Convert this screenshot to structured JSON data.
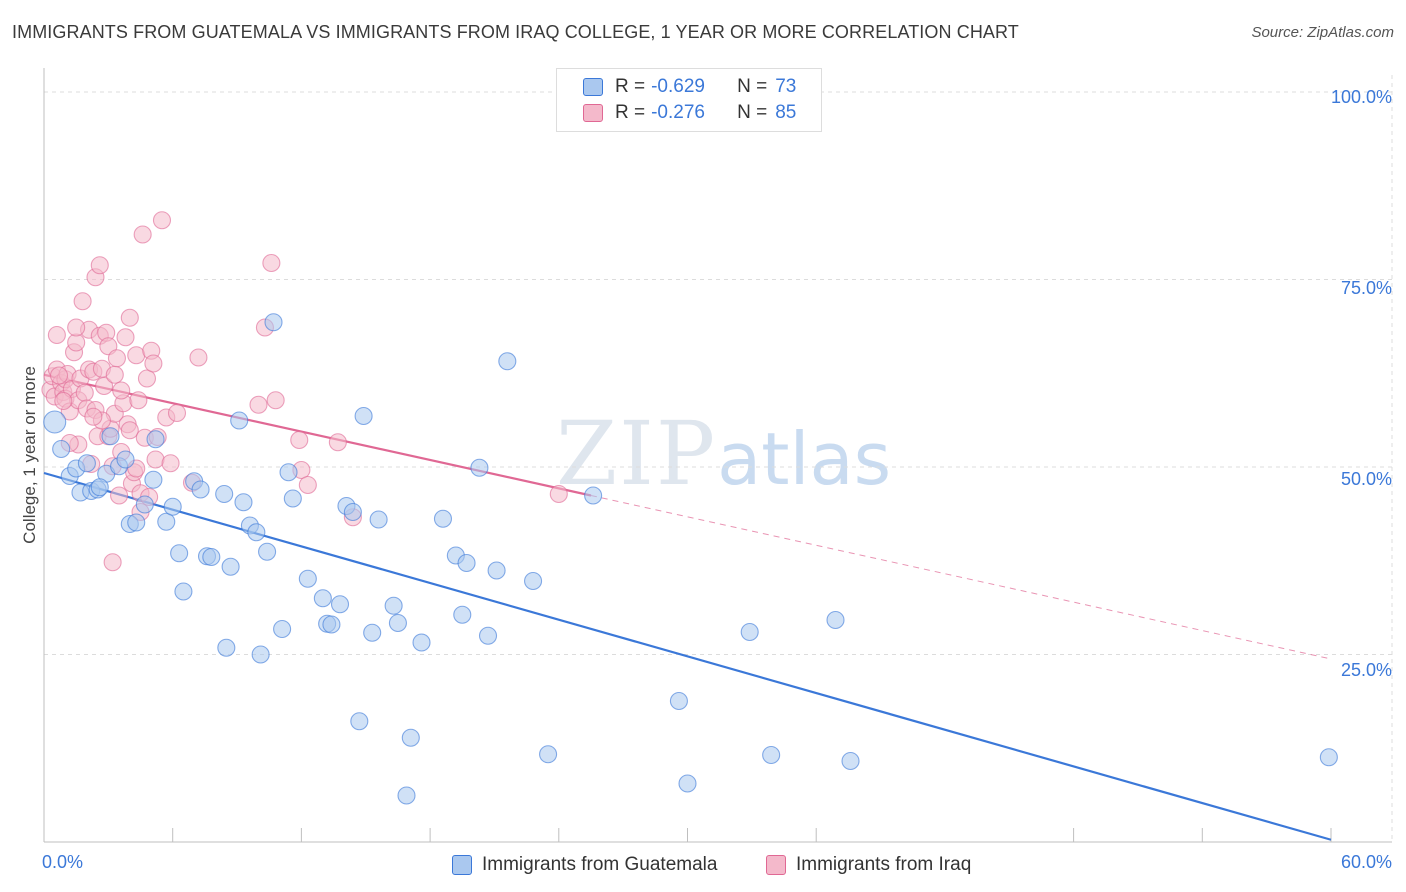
{
  "header": {
    "title": "IMMIGRANTS FROM GUATEMALA VS IMMIGRANTS FROM IRAQ COLLEGE, 1 YEAR OR MORE CORRELATION CHART",
    "source": "Source: ZipAtlas.com"
  },
  "watermark": {
    "zip": "ZIP",
    "atlas": "atlas"
  },
  "legend_top": {
    "rows": [
      {
        "r_label": "R =",
        "r_value": "-0.629",
        "n_label": "N =",
        "n_value": "73",
        "color": "#aac8ef"
      },
      {
        "r_label": "R =",
        "r_value": "-0.276",
        "n_label": "N =",
        "n_value": "85",
        "color": "#f4b9cb"
      }
    ]
  },
  "legend_bottom": {
    "items": [
      {
        "label": "Immigrants from Guatemala",
        "color": "#aac8ef"
      },
      {
        "label": "Immigrants from Iraq",
        "color": "#f4b9cb"
      }
    ]
  },
  "axes": {
    "ylabel": "College, 1 year or more",
    "x_min_label": "0.0%",
    "x_max_label": "60.0%",
    "y_tick_labels": [
      "100.0%",
      "75.0%",
      "50.0%",
      "25.0%"
    ]
  },
  "chart_data": {
    "type": "scatter",
    "title": "IMMIGRANTS FROM GUATEMALA VS IMMIGRANTS FROM IRAQ COLLEGE, 1 YEAR OR MORE CORRELATION CHART",
    "xlabel": "",
    "ylabel": "College, 1 year or more",
    "xlim": [
      0,
      60
    ],
    "ylim": [
      0,
      102
    ],
    "grid": true,
    "legend_position": "bottom",
    "series": [
      {
        "name": "Immigrants from Guatemala",
        "color": "#3b78d8",
        "fill": "#aac8ef",
        "trend": {
          "x": [
            0,
            60
          ],
          "y": [
            49.2,
            0.3
          ]
        },
        "points": [
          [
            0.5,
            56.0
          ],
          [
            0.8,
            52.4
          ],
          [
            1.2,
            48.8
          ],
          [
            1.5,
            49.8
          ],
          [
            1.7,
            46.6
          ],
          [
            2.0,
            50.5
          ],
          [
            2.2,
            46.8
          ],
          [
            2.5,
            47.0
          ],
          [
            2.9,
            49.1
          ],
          [
            3.1,
            54.1
          ],
          [
            3.5,
            50.1
          ],
          [
            3.8,
            51.0
          ],
          [
            4.0,
            42.4
          ],
          [
            4.3,
            42.6
          ],
          [
            4.7,
            45.0
          ],
          [
            5.2,
            53.7
          ],
          [
            5.1,
            48.3
          ],
          [
            5.7,
            42.7
          ],
          [
            6.3,
            38.5
          ],
          [
            6.5,
            33.4
          ],
          [
            7.0,
            48.1
          ],
          [
            7.3,
            47.0
          ],
          [
            7.6,
            38.1
          ],
          [
            7.8,
            38.0
          ],
          [
            8.4,
            46.4
          ],
          [
            8.5,
            25.9
          ],
          [
            8.7,
            36.7
          ],
          [
            9.1,
            56.2
          ],
          [
            9.3,
            45.3
          ],
          [
            9.6,
            42.2
          ],
          [
            9.9,
            41.3
          ],
          [
            10.1,
            25.0
          ],
          [
            10.4,
            38.7
          ],
          [
            10.7,
            69.3
          ],
          [
            11.1,
            28.4
          ],
          [
            11.4,
            49.3
          ],
          [
            11.6,
            45.8
          ],
          [
            12.3,
            35.1
          ],
          [
            13.0,
            32.5
          ],
          [
            13.2,
            29.1
          ],
          [
            13.4,
            29.0
          ],
          [
            13.8,
            31.7
          ],
          [
            14.1,
            44.8
          ],
          [
            14.4,
            44.0
          ],
          [
            14.9,
            56.8
          ],
          [
            14.7,
            16.1
          ],
          [
            15.3,
            27.9
          ],
          [
            15.6,
            43.0
          ],
          [
            16.3,
            31.5
          ],
          [
            16.5,
            29.2
          ],
          [
            16.9,
            6.2
          ],
          [
            17.1,
            13.9
          ],
          [
            17.6,
            26.6
          ],
          [
            18.6,
            43.1
          ],
          [
            19.2,
            38.2
          ],
          [
            19.5,
            30.3
          ],
          [
            19.7,
            37.2
          ],
          [
            20.3,
            49.9
          ],
          [
            20.7,
            27.5
          ],
          [
            21.1,
            36.2
          ],
          [
            21.6,
            64.1
          ],
          [
            22.8,
            34.8
          ],
          [
            23.5,
            11.7
          ],
          [
            25.6,
            46.2
          ],
          [
            29.6,
            18.8
          ],
          [
            30.0,
            7.8
          ],
          [
            32.9,
            28.0
          ],
          [
            33.9,
            11.6
          ],
          [
            36.9,
            29.6
          ],
          [
            37.6,
            10.8
          ],
          [
            59.9,
            11.3
          ],
          [
            2.6,
            47.3
          ],
          [
            6.0,
            44.7
          ]
        ]
      },
      {
        "name": "Immigrants from Iraq",
        "color": "#e06894",
        "fill": "#f4b9cb",
        "trend": {
          "x": [
            0,
            25.5
          ],
          "y": [
            62.3,
            46.2
          ]
        },
        "trend_dashed": {
          "x": [
            25.5,
            60
          ],
          "y": [
            46.2,
            24.4
          ]
        },
        "points": [
          [
            0.3,
            60.3
          ],
          [
            0.4,
            62.1
          ],
          [
            0.5,
            59.4
          ],
          [
            0.6,
            63.0
          ],
          [
            0.6,
            67.6
          ],
          [
            0.8,
            61.2
          ],
          [
            0.9,
            60.0
          ],
          [
            1.0,
            59.1
          ],
          [
            1.0,
            61.7
          ],
          [
            1.1,
            62.4
          ],
          [
            1.2,
            57.4
          ],
          [
            1.3,
            60.4
          ],
          [
            1.4,
            65.3
          ],
          [
            1.5,
            66.6
          ],
          [
            1.6,
            58.9
          ],
          [
            1.6,
            53.0
          ],
          [
            1.7,
            61.8
          ],
          [
            1.8,
            72.1
          ],
          [
            1.9,
            59.9
          ],
          [
            2.0,
            57.8
          ],
          [
            2.1,
            68.3
          ],
          [
            2.1,
            63.0
          ],
          [
            2.2,
            50.4
          ],
          [
            2.3,
            62.7
          ],
          [
            2.4,
            75.3
          ],
          [
            2.4,
            57.6
          ],
          [
            2.5,
            54.1
          ],
          [
            2.6,
            67.5
          ],
          [
            2.6,
            76.9
          ],
          [
            2.7,
            63.1
          ],
          [
            2.8,
            60.8
          ],
          [
            2.9,
            67.9
          ],
          [
            3.0,
            54.1
          ],
          [
            3.0,
            66.1
          ],
          [
            3.1,
            55.1
          ],
          [
            3.2,
            50.1
          ],
          [
            3.3,
            62.3
          ],
          [
            3.3,
            57.1
          ],
          [
            3.4,
            64.5
          ],
          [
            3.5,
            46.2
          ],
          [
            3.6,
            52.0
          ],
          [
            3.7,
            58.5
          ],
          [
            3.8,
            67.3
          ],
          [
            3.9,
            55.7
          ],
          [
            4.0,
            69.9
          ],
          [
            4.0,
            54.9
          ],
          [
            4.1,
            47.8
          ],
          [
            4.2,
            49.3
          ],
          [
            4.3,
            64.9
          ],
          [
            4.4,
            58.9
          ],
          [
            4.5,
            46.5
          ],
          [
            4.6,
            81.0
          ],
          [
            4.7,
            53.9
          ],
          [
            4.8,
            61.8
          ],
          [
            4.9,
            46.0
          ],
          [
            5.0,
            65.5
          ],
          [
            5.1,
            63.8
          ],
          [
            5.2,
            51.0
          ],
          [
            5.3,
            54.0
          ],
          [
            5.5,
            82.9
          ],
          [
            5.7,
            56.6
          ],
          [
            5.9,
            50.5
          ],
          [
            6.2,
            57.2
          ],
          [
            6.9,
            47.9
          ],
          [
            7.2,
            64.6
          ],
          [
            10.0,
            58.3
          ],
          [
            10.3,
            68.6
          ],
          [
            10.6,
            77.2
          ],
          [
            10.8,
            58.9
          ],
          [
            11.9,
            53.6
          ],
          [
            12.0,
            49.6
          ],
          [
            12.3,
            47.6
          ],
          [
            14.4,
            43.3
          ],
          [
            13.7,
            53.3
          ],
          [
            24.0,
            46.4
          ],
          [
            3.2,
            37.3
          ],
          [
            4.5,
            44.0
          ],
          [
            4.3,
            49.8
          ],
          [
            3.6,
            60.2
          ],
          [
            2.7,
            56.2
          ],
          [
            1.2,
            53.2
          ],
          [
            1.5,
            68.6
          ],
          [
            0.7,
            62.2
          ],
          [
            0.9,
            58.8
          ],
          [
            2.3,
            56.7
          ]
        ]
      }
    ]
  }
}
